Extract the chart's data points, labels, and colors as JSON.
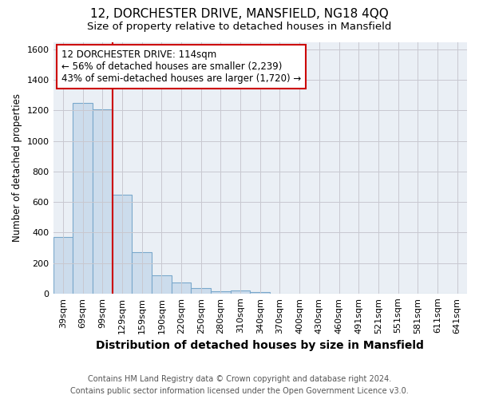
{
  "title": "12, DORCHESTER DRIVE, MANSFIELD, NG18 4QQ",
  "subtitle": "Size of property relative to detached houses in Mansfield",
  "xlabel": "Distribution of detached houses by size in Mansfield",
  "ylabel": "Number of detached properties",
  "footnote": "Contains HM Land Registry data © Crown copyright and database right 2024.\nContains public sector information licensed under the Open Government Licence v3.0.",
  "categories": [
    "39sqm",
    "69sqm",
    "99sqm",
    "129sqm",
    "159sqm",
    "190sqm",
    "220sqm",
    "250sqm",
    "280sqm",
    "310sqm",
    "340sqm",
    "370sqm",
    "400sqm",
    "430sqm",
    "460sqm",
    "491sqm",
    "521sqm",
    "551sqm",
    "581sqm",
    "611sqm",
    "641sqm"
  ],
  "values": [
    370,
    1250,
    1210,
    650,
    270,
    120,
    70,
    35,
    15,
    20,
    10,
    0,
    0,
    0,
    0,
    0,
    0,
    0,
    0,
    0,
    0
  ],
  "bar_color": "#ccdcec",
  "bar_edgecolor": "#7aa8cc",
  "property_line_x": 2.5,
  "property_line_color": "#cc0000",
  "annotation_box_color": "#cc0000",
  "annotation_line1": "12 DORCHESTER DRIVE: 114sqm",
  "annotation_line2": "← 56% of detached houses are smaller (2,239)",
  "annotation_line3": "43% of semi-detached houses are larger (1,720) →",
  "ylim": [
    0,
    1650
  ],
  "yticks": [
    0,
    200,
    400,
    600,
    800,
    1000,
    1200,
    1400,
    1600
  ],
  "grid_color": "#c8c8d0",
  "background_color": "#eaeff5",
  "title_fontsize": 11,
  "subtitle_fontsize": 9.5,
  "xlabel_fontsize": 10,
  "ylabel_fontsize": 8.5,
  "tick_fontsize": 8,
  "annotation_fontsize": 8.5
}
